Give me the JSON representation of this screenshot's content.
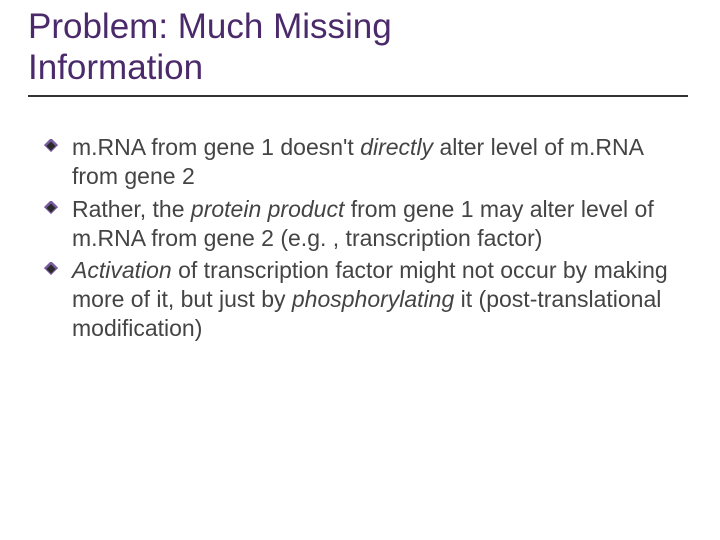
{
  "title": {
    "line1": "Problem: Much Missing",
    "line2": "Information",
    "color": "#4b2a6b",
    "fontsize": 35,
    "rule_color": "#333333"
  },
  "bullets": [
    {
      "segments": [
        {
          "text": "m.RNA from gene 1 doesn't ",
          "italic": false
        },
        {
          "text": "directly",
          "italic": true
        },
        {
          "text": " alter level of m.RNA from gene 2",
          "italic": false
        }
      ]
    },
    {
      "segments": [
        {
          "text": "Rather, the ",
          "italic": false
        },
        {
          "text": "protein product",
          "italic": true
        },
        {
          "text": " from gene 1 may alter level of m.RNA from gene 2 (e.g. , transcription factor)",
          "italic": false
        }
      ]
    },
    {
      "segments": [
        {
          "text": "Activation",
          "italic": true
        },
        {
          "text": " of transcription factor might not occur by making more of it, but just by ",
          "italic": false
        },
        {
          "text": "phosphorylating",
          "italic": true
        },
        {
          "text": " it (post-translational modification)",
          "italic": false
        }
      ]
    }
  ],
  "bullet_style": {
    "icon_name": "diamond-bullet-icon",
    "outer_color": "#7a5ba0",
    "inner_color": "#2a2a2a",
    "text_color": "#444444",
    "fontsize": 23
  },
  "background_color": "#ffffff"
}
